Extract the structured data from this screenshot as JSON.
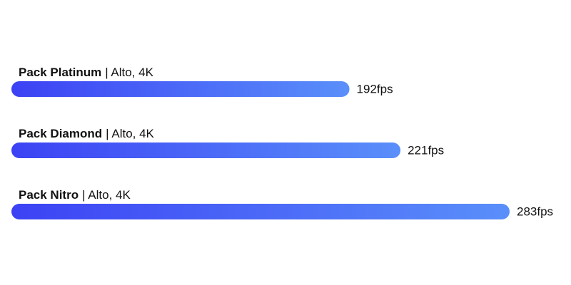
{
  "chart_data": {
    "type": "hbar",
    "categories": [
      "Pack Platinum",
      "Pack Diamond",
      "Pack Nitro"
    ],
    "category_details": [
      "| Alto, 4K",
      "| Alto, 4K",
      "| Alto, 4K"
    ],
    "values": [
      192,
      221,
      283
    ],
    "value_labels": [
      "192fps",
      "221fps",
      "283fps"
    ],
    "color_start": "#3c42f4",
    "color_end": "#5a8ffa"
  }
}
